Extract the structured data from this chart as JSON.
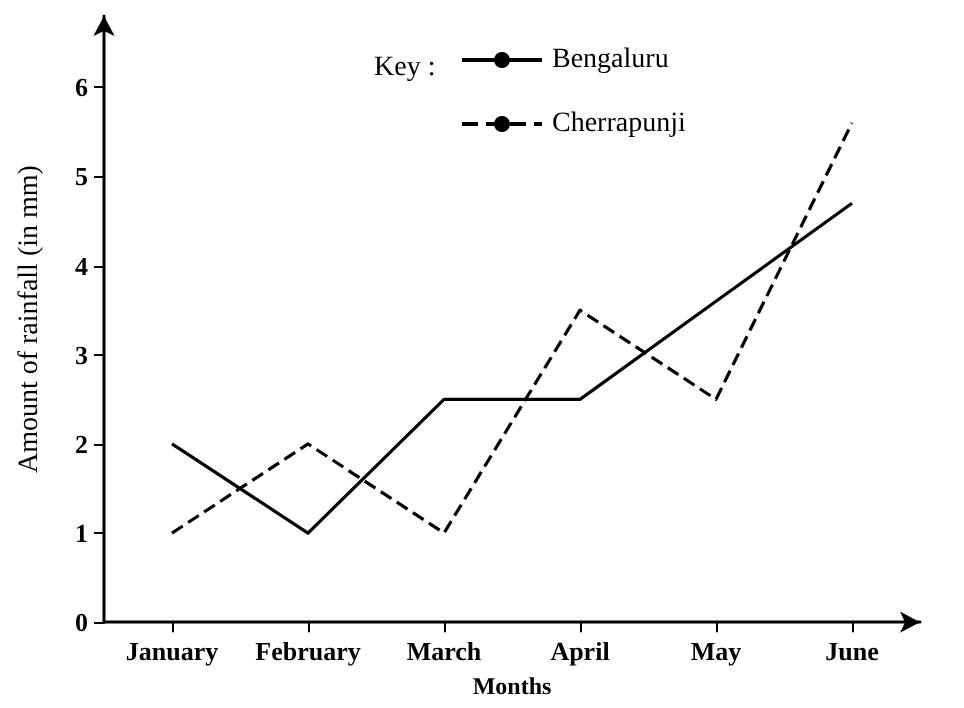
{
  "chart_data": {
    "type": "line",
    "xlabel": "Months",
    "ylabel": "Amount of rainfall (in mm)",
    "legend_title": "Key :",
    "legend": "top",
    "grid": false,
    "marker": "none",
    "categories": [
      "January",
      "February",
      "March",
      "April",
      "May",
      "June"
    ],
    "ylim": [
      0,
      6.8
    ],
    "yticks": [
      0,
      1,
      2,
      3,
      4,
      5,
      6
    ],
    "series": [
      {
        "name": "Bengaluru",
        "color": "#000000",
        "line_style": "solid",
        "values": [
          2,
          1,
          2.5,
          2.5,
          3.6,
          4.7
        ]
      },
      {
        "name": "Cherrapunji",
        "color": "#000000",
        "line_style": "dashed",
        "values": [
          1,
          2,
          1,
          3.5,
          2.5,
          5.6
        ]
      }
    ]
  }
}
